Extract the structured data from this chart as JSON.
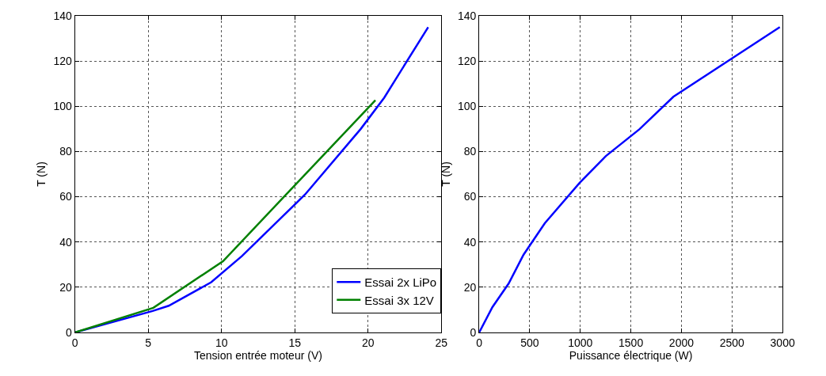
{
  "chart_data": [
    {
      "type": "line",
      "xlabel": "Tension entrée moteur (V)",
      "ylabel": "T (N)",
      "xlim": [
        0,
        25
      ],
      "xticks": [
        0,
        5,
        10,
        15,
        20,
        25
      ],
      "ylim": [
        0,
        140
      ],
      "yticks": [
        0,
        20,
        40,
        60,
        80,
        100,
        120,
        140
      ],
      "grid": true,
      "legend": "bottom right",
      "series": [
        {
          "name": "Essai 2x LiPo",
          "color": "#0000ff",
          "x": [
            0,
            5.3,
            6.4,
            9.3,
            11.4,
            15.7,
            19.5,
            21.1,
            24.1
          ],
          "values": [
            0,
            9.5,
            11.8,
            22.2,
            33.8,
            61,
            90,
            103.8,
            135
          ]
        },
        {
          "name": "Essai 3x 12V",
          "color": "#008000",
          "x": [
            0,
            5.35,
            10.1,
            20.5
          ],
          "values": [
            0,
            10.9,
            31.5,
            102.7
          ]
        }
      ]
    },
    {
      "type": "line",
      "xlabel": "Puissance électrique (W)",
      "ylabel": "T (N)",
      "xlim": [
        0,
        3000
      ],
      "xticks": [
        0,
        500,
        1000,
        1500,
        2000,
        2500,
        3000
      ],
      "ylim": [
        0,
        140
      ],
      "yticks": [
        0,
        20,
        40,
        60,
        80,
        100,
        120,
        140
      ],
      "grid": true,
      "series": [
        {
          "color": "#0000ff",
          "x": [
            0,
            131,
            291,
            439,
            649,
            994,
            1253,
            1586,
            1920,
            2973
          ],
          "values": [
            0,
            11.2,
            21.6,
            34.4,
            48.3,
            66.2,
            78,
            89.9,
            104.2,
            135
          ]
        }
      ]
    }
  ]
}
